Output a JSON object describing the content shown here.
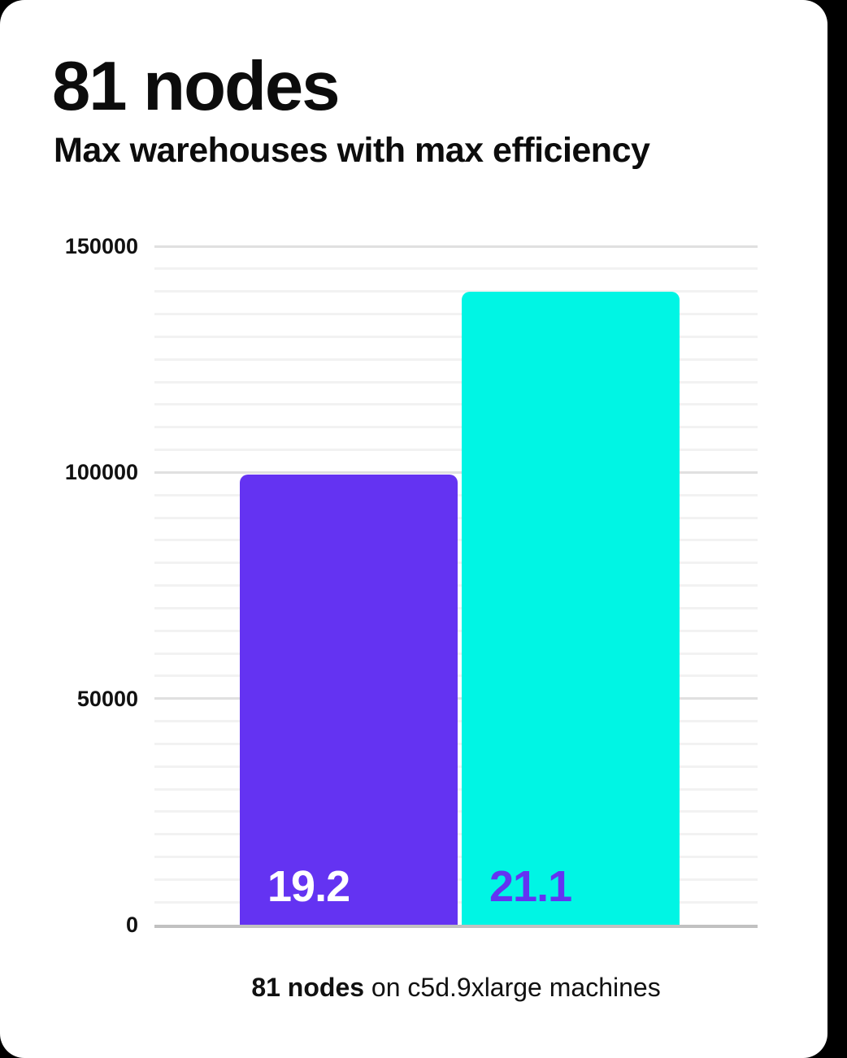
{
  "page": {
    "background_color": "#000000",
    "card_color": "#ffffff"
  },
  "header": {
    "title": "81 nodes",
    "subtitle": "Max warehouses with max efficiency"
  },
  "caption": {
    "bold": "81 nodes",
    "rest": " on c5d.9xlarge machines"
  },
  "chart_data": {
    "type": "bar",
    "title": "81 nodes",
    "subtitle": "Max warehouses with max efficiency",
    "categories": [
      "19.2",
      "21.1"
    ],
    "values": [
      99500,
      140000
    ],
    "bar_labels": [
      "19.2",
      "21.1"
    ],
    "xlabel": "",
    "ylabel": "",
    "ylim": [
      0,
      150000
    ],
    "yticks": [
      0,
      50000,
      100000,
      150000
    ],
    "minor_gridline_step": 5000,
    "major_gridline_step": 50000,
    "grid": true,
    "legend": false,
    "caption": "81 nodes on c5d.9xlarge machines",
    "colors": {
      "bars": [
        "#6433f2",
        "#00f5e4"
      ],
      "bar_label_text": [
        "#ffffff",
        "#6433f2"
      ],
      "minor_gridline": "#f2f2f2",
      "major_gridline": "#e0e0e0",
      "axis_line": "#c1c1c1",
      "text": "#0d0d0d"
    }
  }
}
